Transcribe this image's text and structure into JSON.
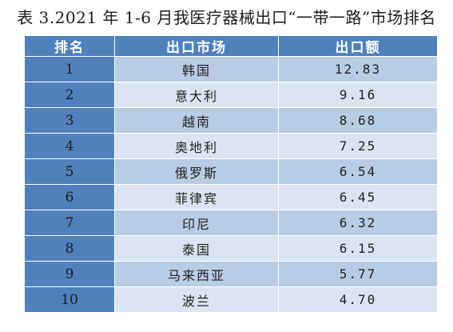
{
  "title": "表 3.2021 年 1-6 月我医疗器械出口“一带一路”市场排名",
  "table": {
    "headers": [
      "排名",
      "出口市场",
      "出口额"
    ],
    "rows": [
      {
        "rank": "1",
        "market": "韩国",
        "value": "12.83"
      },
      {
        "rank": "2",
        "market": "意大利",
        "value": "9.16"
      },
      {
        "rank": "3",
        "market": "越南",
        "value": "8.68"
      },
      {
        "rank": "4",
        "market": "奥地利",
        "value": "7.25"
      },
      {
        "rank": "5",
        "market": "俄罗斯",
        "value": "6.54"
      },
      {
        "rank": "6",
        "market": "菲律宾",
        "value": "6.45"
      },
      {
        "rank": "7",
        "market": "印尼",
        "value": "6.32"
      },
      {
        "rank": "8",
        "market": "泰国",
        "value": "6.15"
      },
      {
        "rank": "9",
        "market": "马来西亚",
        "value": "5.77"
      },
      {
        "rank": "10",
        "market": "波兰",
        "value": "4.70"
      }
    ]
  },
  "colors": {
    "header_bg": "#4f81bd",
    "row_odd": "#b8cce4",
    "row_even": "#dbe5f1"
  }
}
